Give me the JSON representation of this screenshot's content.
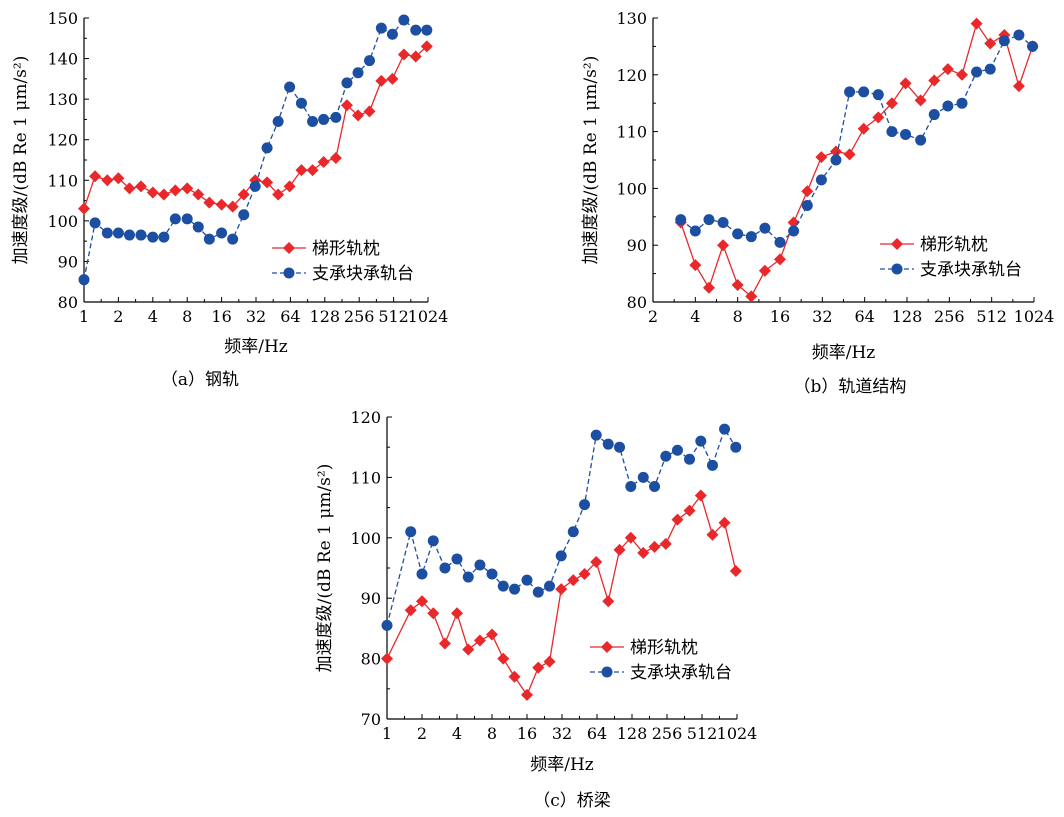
{
  "colors": {
    "series1": "#e8282a",
    "series2": "#1c4ea1",
    "axis": "#000000"
  },
  "legend_names": [
    "梯形轨枕",
    "支承块承轨台"
  ],
  "chart_data": [
    {
      "type": "line",
      "caption": "（a）钢轨",
      "xlabel": "频率/Hz",
      "ylabel": "加速度级/(dB Re 1 μm/s²)",
      "x_scale": "log2",
      "xlim": [
        1,
        1024
      ],
      "ylim": [
        80,
        150
      ],
      "x_ticks": [
        1,
        2,
        4,
        8,
        16,
        32,
        64,
        128,
        256,
        512,
        1024
      ],
      "x_tick_labels": [
        "1",
        "2",
        "4",
        "8",
        "16",
        "32",
        "64",
        "128",
        "256",
        "512",
        "1024"
      ],
      "y_ticks": [
        80,
        90,
        100,
        110,
        120,
        130,
        140,
        150
      ],
      "y_tick_labels": [
        "80",
        "90",
        "100",
        "110",
        "120",
        "130",
        "140",
        "150"
      ],
      "legend_position": "right",
      "x": [
        1,
        1.25,
        1.6,
        2,
        2.5,
        3.15,
        4,
        5,
        6.3,
        8,
        10,
        12.5,
        16,
        20,
        25,
        31.5,
        40,
        50,
        63,
        80,
        100,
        125,
        160,
        200,
        250,
        315,
        400,
        500,
        630,
        800,
        1000
      ],
      "series": [
        {
          "name": "梯形轨枕",
          "style": "solid",
          "marker": "diamond",
          "values": [
            103,
            111,
            110,
            110.5,
            108,
            108.5,
            107,
            106.5,
            107.5,
            108,
            106.5,
            104.5,
            104,
            103.5,
            106.5,
            110,
            109.5,
            106.5,
            108.5,
            112.5,
            112.5,
            114.5,
            115.5,
            128.5,
            126,
            127,
            134.5,
            135,
            141,
            140.5,
            143
          ]
        },
        {
          "name": "支承块承轨台",
          "style": "dashed",
          "marker": "circle",
          "values": [
            85.5,
            99.5,
            97,
            97,
            96.5,
            96.5,
            96,
            96,
            100.5,
            100.5,
            98.5,
            95.5,
            97,
            95.5,
            101.5,
            108.5,
            118,
            124.5,
            133,
            129,
            124.5,
            125,
            125.5,
            134,
            136.5,
            139.5,
            147.5,
            146,
            149.5,
            147,
            147
          ]
        }
      ]
    },
    {
      "type": "line",
      "caption": "（b）轨道结构",
      "xlabel": "频率/Hz",
      "ylabel": "加速度级/(dB Re 1 μm/s²)",
      "x_scale": "log2",
      "xlim": [
        2,
        1024
      ],
      "ylim": [
        80,
        130
      ],
      "x_ticks": [
        2,
        4,
        8,
        16,
        32,
        64,
        128,
        256,
        512,
        1024
      ],
      "x_tick_labels": [
        "2",
        "4",
        "8",
        "16",
        "32",
        "64",
        "128",
        "256",
        "512",
        "1024"
      ],
      "y_ticks": [
        80,
        90,
        100,
        110,
        120,
        130
      ],
      "y_tick_labels": [
        "80",
        "90",
        "100",
        "110",
        "120",
        "130"
      ],
      "legend_position": "bottom-right",
      "x": [
        3.15,
        4,
        5,
        6.3,
        8,
        10,
        12.5,
        16,
        20,
        25,
        31.5,
        40,
        50,
        63,
        80,
        100,
        125,
        160,
        200,
        250,
        315,
        400,
        500,
        630,
        800,
        1000
      ],
      "series": [
        {
          "name": "梯形轨枕",
          "style": "solid",
          "marker": "diamond",
          "values": [
            94,
            86.5,
            82.5,
            90,
            83,
            81,
            85.5,
            87.5,
            94,
            99.5,
            105.5,
            106.5,
            106,
            110.5,
            112.5,
            115,
            118.5,
            115.5,
            119,
            121,
            120,
            129,
            125.5,
            127,
            118,
            125
          ]
        },
        {
          "name": "支承块承轨台",
          "style": "dashed",
          "marker": "circle",
          "values": [
            94.5,
            92.5,
            94.5,
            94,
            92,
            91.5,
            93,
            90.5,
            92.5,
            97,
            101.5,
            105,
            117,
            117,
            116.5,
            110,
            109.5,
            108.5,
            113,
            114.5,
            115,
            120.5,
            121,
            126,
            127,
            125
          ]
        }
      ]
    },
    {
      "type": "line",
      "caption": "（c）桥梁",
      "xlabel": "频率/Hz",
      "ylabel": "加速度级/(dB Re 1 μm/s²)",
      "x_scale": "log2",
      "xlim": [
        1,
        1024
      ],
      "ylim": [
        70,
        120
      ],
      "x_ticks": [
        1,
        2,
        4,
        8,
        16,
        32,
        64,
        128,
        256,
        512,
        1024
      ],
      "x_tick_labels": [
        "1",
        "2",
        "4",
        "8",
        "16",
        "32",
        "64",
        "128",
        "256",
        "512",
        "1024"
      ],
      "y_ticks": [
        70,
        80,
        90,
        100,
        110,
        120
      ],
      "y_tick_labels": [
        "70",
        "80",
        "90",
        "100",
        "110",
        "120"
      ],
      "legend_position": "bottom-right",
      "x": [
        1,
        1.6,
        2,
        2.5,
        3.15,
        4,
        5,
        6.3,
        8,
        10,
        12.5,
        16,
        20,
        25,
        31.5,
        40,
        50,
        63,
        80,
        100,
        125,
        160,
        200,
        250,
        315,
        400,
        500,
        630,
        800,
        1000
      ],
      "series": [
        {
          "name": "梯形轨枕",
          "style": "solid",
          "marker": "diamond",
          "values": [
            80,
            88,
            89.5,
            87.5,
            82.5,
            87.5,
            81.5,
            83,
            84,
            80,
            77,
            74,
            78.5,
            79.5,
            91.5,
            93,
            94,
            96,
            89.5,
            98,
            100,
            97.5,
            98.5,
            99,
            103,
            104.5,
            107,
            100.5,
            102.5,
            94.5
          ]
        },
        {
          "name": "支承块承轨台",
          "style": "dashed",
          "marker": "circle",
          "values": [
            85.5,
            101,
            94,
            99.5,
            95,
            96.5,
            93.5,
            95.5,
            94,
            92,
            91.5,
            93,
            91,
            92,
            97,
            101,
            105.5,
            117,
            115.5,
            115,
            108.5,
            110,
            108.5,
            113.5,
            114.5,
            113,
            116,
            112,
            118,
            115
          ]
        }
      ]
    }
  ]
}
